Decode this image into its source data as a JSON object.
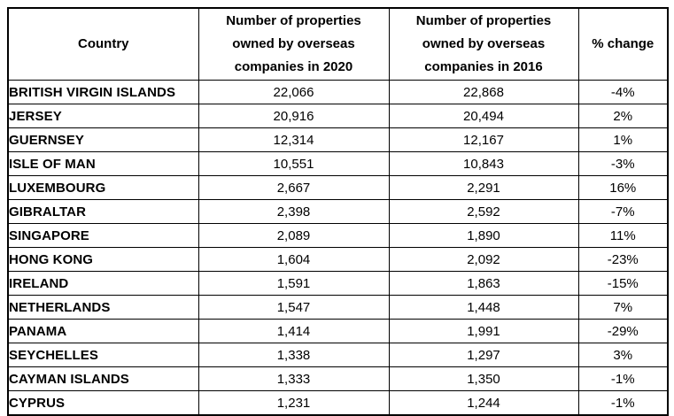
{
  "table": {
    "header": {
      "country": "Country",
      "col_2020": "Number of properties\nowned by overseas\ncompanies in 2020",
      "col_2016": "Number of properties\nowned by overseas\ncompanies in 2016",
      "change": "% change"
    },
    "rows": [
      {
        "country": "BRITISH VIRGIN ISLANDS",
        "y2020": "22,066",
        "y2016": "22,868",
        "change": "-4%"
      },
      {
        "country": "JERSEY",
        "y2020": "20,916",
        "y2016": "20,494",
        "change": "2%"
      },
      {
        "country": "GUERNSEY",
        "y2020": "12,314",
        "y2016": "12,167",
        "change": "1%"
      },
      {
        "country": "ISLE OF MAN",
        "y2020": "10,551",
        "y2016": "10,843",
        "change": "-3%"
      },
      {
        "country": "LUXEMBOURG",
        "y2020": "2,667",
        "y2016": "2,291",
        "change": "16%"
      },
      {
        "country": "GIBRALTAR",
        "y2020": "2,398",
        "y2016": "2,592",
        "change": "-7%"
      },
      {
        "country": "SINGAPORE",
        "y2020": "2,089",
        "y2016": "1,890",
        "change": "11%"
      },
      {
        "country": "HONG KONG",
        "y2020": "1,604",
        "y2016": "2,092",
        "change": "-23%"
      },
      {
        "country": "IRELAND",
        "y2020": "1,591",
        "y2016": "1,863",
        "change": "-15%"
      },
      {
        "country": "NETHERLANDS",
        "y2020": "1,547",
        "y2016": "1,448",
        "change": "7%"
      },
      {
        "country": "PANAMA",
        "y2020": "1,414",
        "y2016": "1,991",
        "change": "-29%"
      },
      {
        "country": "SEYCHELLES",
        "y2020": "1,338",
        "y2016": "1,297",
        "change": "3%"
      },
      {
        "country": "CAYMAN ISLANDS",
        "y2020": "1,333",
        "y2016": "1,350",
        "change": "-1%"
      },
      {
        "country": "CYPRUS",
        "y2020": "1,231",
        "y2016": "1,244",
        "change": "-1%"
      }
    ]
  },
  "chart_data": {
    "type": "table",
    "title": "",
    "columns": [
      "Country",
      "Number of properties owned by overseas companies in 2020",
      "Number of properties owned by overseas companies in 2016",
      "% change"
    ],
    "rows": [
      [
        "BRITISH VIRGIN ISLANDS",
        22066,
        22868,
        -4
      ],
      [
        "JERSEY",
        20916,
        20494,
        2
      ],
      [
        "GUERNSEY",
        12314,
        12167,
        1
      ],
      [
        "ISLE OF MAN",
        10551,
        10843,
        -3
      ],
      [
        "LUXEMBOURG",
        2667,
        2291,
        16
      ],
      [
        "GIBRALTAR",
        2398,
        2592,
        -7
      ],
      [
        "SINGAPORE",
        2089,
        1890,
        11
      ],
      [
        "HONG KONG",
        1604,
        2092,
        -23
      ],
      [
        "IRELAND",
        1591,
        1863,
        -15
      ],
      [
        "NETHERLANDS",
        1547,
        1448,
        7
      ],
      [
        "PANAMA",
        1414,
        1991,
        -29
      ],
      [
        "SEYCHELLES",
        1338,
        1297,
        3
      ],
      [
        "CAYMAN ISLANDS",
        1333,
        1350,
        -1
      ],
      [
        "CYPRUS",
        1231,
        1244,
        -1
      ]
    ],
    "change_unit": "%"
  },
  "colors": {
    "background": "#ffffff",
    "border": "#000000",
    "text": "#000000"
  }
}
